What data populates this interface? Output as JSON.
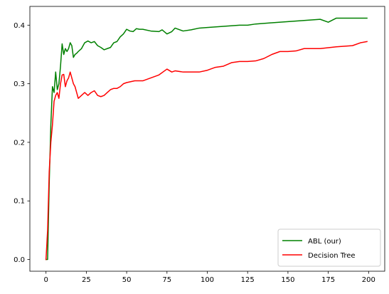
{
  "chart_data": {
    "type": "line",
    "title": "",
    "xlabel": "",
    "ylabel": "",
    "xlim": [
      -10,
      210
    ],
    "ylim": [
      -0.02,
      0.432
    ],
    "x_ticks": [
      0,
      25,
      50,
      75,
      100,
      125,
      150,
      175,
      200
    ],
    "y_ticks": [
      0.0,
      0.1,
      0.2,
      0.3,
      0.4
    ],
    "x_tick_labels": [
      "0",
      "25",
      "50",
      "75",
      "100",
      "125",
      "150",
      "175",
      "200"
    ],
    "y_tick_labels": [
      "0.0",
      "0.1",
      "0.2",
      "0.3",
      "0.4"
    ],
    "grid": false,
    "legend_position": "lower-right",
    "series": [
      {
        "name": "ABL (our)",
        "color": "#008000",
        "x": [
          0,
          1,
          2,
          3,
          4,
          5,
          6,
          7,
          8,
          9,
          10,
          11,
          12,
          13,
          14,
          15,
          16,
          17,
          18,
          19,
          20,
          22,
          24,
          26,
          28,
          30,
          32,
          34,
          36,
          38,
          40,
          42,
          44,
          46,
          48,
          50,
          52,
          54,
          56,
          58,
          60,
          65,
          70,
          72,
          75,
          78,
          80,
          85,
          90,
          95,
          100,
          110,
          120,
          125,
          130,
          140,
          150,
          160,
          170,
          175,
          180,
          190,
          195,
          199
        ],
        "y": [
          0.0,
          0.0,
          0.13,
          0.23,
          0.295,
          0.285,
          0.32,
          0.29,
          0.3,
          0.33,
          0.368,
          0.35,
          0.36,
          0.355,
          0.36,
          0.37,
          0.365,
          0.345,
          0.35,
          0.352,
          0.355,
          0.36,
          0.37,
          0.373,
          0.37,
          0.372,
          0.365,
          0.362,
          0.358,
          0.36,
          0.362,
          0.37,
          0.372,
          0.38,
          0.385,
          0.393,
          0.39,
          0.389,
          0.394,
          0.393,
          0.393,
          0.39,
          0.389,
          0.392,
          0.385,
          0.389,
          0.395,
          0.39,
          0.392,
          0.395,
          0.396,
          0.398,
          0.4,
          0.4,
          0.402,
          0.404,
          0.406,
          0.408,
          0.41,
          0.405,
          0.412,
          0.412,
          0.412,
          0.412
        ]
      },
      {
        "name": "Decision Tree",
        "color": "#ff0000",
        "x": [
          0,
          1,
          2,
          3,
          4,
          5,
          6,
          7,
          8,
          9,
          10,
          11,
          12,
          13,
          14,
          15,
          16,
          17,
          18,
          19,
          20,
          22,
          24,
          26,
          28,
          30,
          32,
          34,
          36,
          38,
          40,
          42,
          44,
          46,
          48,
          50,
          55,
          60,
          65,
          70,
          75,
          78,
          80,
          85,
          90,
          95,
          100,
          105,
          110,
          115,
          120,
          125,
          130,
          135,
          140,
          145,
          150,
          155,
          160,
          170,
          180,
          190,
          195,
          199
        ],
        "y": [
          0.0,
          0.05,
          0.15,
          0.2,
          0.23,
          0.27,
          0.28,
          0.285,
          0.275,
          0.3,
          0.315,
          0.316,
          0.295,
          0.305,
          0.31,
          0.32,
          0.31,
          0.3,
          0.295,
          0.285,
          0.275,
          0.28,
          0.285,
          0.28,
          0.285,
          0.288,
          0.28,
          0.278,
          0.28,
          0.285,
          0.29,
          0.292,
          0.292,
          0.295,
          0.3,
          0.302,
          0.305,
          0.305,
          0.31,
          0.315,
          0.325,
          0.32,
          0.322,
          0.32,
          0.32,
          0.32,
          0.323,
          0.328,
          0.33,
          0.336,
          0.338,
          0.338,
          0.339,
          0.343,
          0.35,
          0.355,
          0.355,
          0.356,
          0.36,
          0.36,
          0.363,
          0.365,
          0.37,
          0.372
        ]
      }
    ]
  }
}
